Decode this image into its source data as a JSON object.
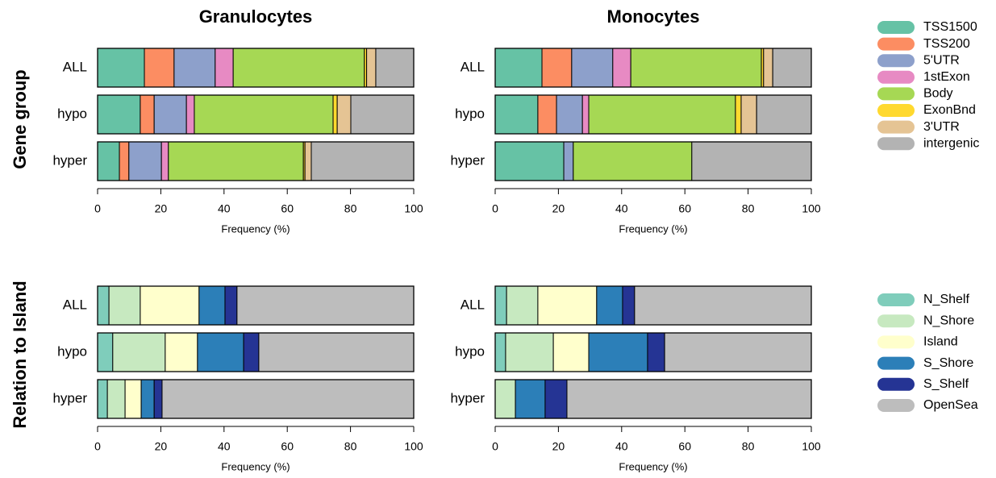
{
  "column_titles": [
    "Granulocytes",
    "Monocytes"
  ],
  "row_titles": [
    "Gene group",
    "Relation to Island"
  ],
  "chart_data": [
    {
      "type": "bar",
      "orientation": "horizontal",
      "stacked": true,
      "legend": "right",
      "categories": [
        "ALL",
        "hypo",
        "hyper"
      ],
      "xlabel": "Frequency (%)",
      "xlim": [
        0,
        100
      ],
      "xticks": [
        0,
        20,
        40,
        60,
        80,
        100
      ],
      "series": [
        {
          "name": "TSS1500",
          "color": "#66c2a5",
          "values": [
            14.8,
            13.5,
            6.9
          ]
        },
        {
          "name": "TSS200",
          "color": "#fc8d62",
          "values": [
            9.4,
            4.4,
            3.0
          ]
        },
        {
          "name": "5'UTR",
          "color": "#8da0cb",
          "values": [
            13.0,
            10.2,
            10.3
          ]
        },
        {
          "name": "1stExon",
          "color": "#e78ac3",
          "values": [
            5.7,
            2.5,
            2.2
          ]
        },
        {
          "name": "Body",
          "color": "#a6d854",
          "values": [
            41.5,
            43.9,
            42.7
          ]
        },
        {
          "name": "ExonBnd",
          "color": "#ffd92f",
          "values": [
            0.7,
            1.3,
            0.5
          ]
        },
        {
          "name": "3'UTR",
          "color": "#e5c494",
          "values": [
            2.9,
            4.3,
            2.0
          ]
        },
        {
          "name": "intergenic",
          "color": "#b3b3b3",
          "values": [
            12.0,
            19.9,
            32.4
          ]
        }
      ]
    },
    {
      "type": "bar",
      "orientation": "horizontal",
      "stacked": true,
      "categories": [
        "ALL",
        "hypo",
        "hyper"
      ],
      "xlabel": "Frequency (%)",
      "xlim": [
        0,
        100
      ],
      "xticks": [
        0,
        20,
        40,
        60,
        80,
        100
      ],
      "series": [
        {
          "name": "TSS1500",
          "color": "#66c2a5",
          "values": [
            14.8,
            13.5,
            21.7
          ]
        },
        {
          "name": "TSS200",
          "color": "#fc8d62",
          "values": [
            9.4,
            5.9,
            0
          ]
        },
        {
          "name": "5'UTR",
          "color": "#8da0cb",
          "values": [
            13.0,
            8.2,
            3.0
          ]
        },
        {
          "name": "1stExon",
          "color": "#e78ac3",
          "values": [
            5.7,
            2.0,
            0
          ]
        },
        {
          "name": "Body",
          "color": "#a6d854",
          "values": [
            41.3,
            46.4,
            37.5
          ]
        },
        {
          "name": "ExonBnd",
          "color": "#ffd92f",
          "values": [
            0.7,
            1.8,
            0
          ]
        },
        {
          "name": "3'UTR",
          "color": "#e5c494",
          "values": [
            2.9,
            4.9,
            0
          ]
        },
        {
          "name": "intergenic",
          "color": "#b3b3b3",
          "values": [
            12.2,
            17.3,
            37.8
          ]
        }
      ]
    },
    {
      "type": "bar",
      "orientation": "horizontal",
      "stacked": true,
      "legend": "right",
      "categories": [
        "ALL",
        "hypo",
        "hyper"
      ],
      "xlabel": "Frequency (%)",
      "xlim": [
        0,
        100
      ],
      "xticks": [
        0,
        20,
        40,
        60,
        80,
        100
      ],
      "series": [
        {
          "name": "N_Shelf",
          "color": "#7fcdbb",
          "values": [
            3.6,
            4.8,
            3.1
          ]
        },
        {
          "name": "N_Shore",
          "color": "#c7e9c0",
          "values": [
            9.9,
            16.6,
            5.6
          ]
        },
        {
          "name": "Island",
          "color": "#ffffcc",
          "values": [
            18.6,
            10.2,
            5.1
          ]
        },
        {
          "name": "S_Shore",
          "color": "#2c7fb8",
          "values": [
            8.2,
            14.6,
            4.1
          ]
        },
        {
          "name": "S_Shelf",
          "color": "#253494",
          "values": [
            3.8,
            4.8,
            2.5
          ]
        },
        {
          "name": "OpenSea",
          "color": "#bdbdbd",
          "values": [
            55.9,
            49.0,
            79.6
          ]
        }
      ]
    },
    {
      "type": "bar",
      "orientation": "horizontal",
      "stacked": true,
      "categories": [
        "ALL",
        "hypo",
        "hyper"
      ],
      "xlabel": "Frequency (%)",
      "xlim": [
        0,
        100
      ],
      "xticks": [
        0,
        20,
        40,
        60,
        80,
        100
      ],
      "series": [
        {
          "name": "N_Shelf",
          "color": "#7fcdbb",
          "values": [
            3.6,
            3.3,
            0
          ]
        },
        {
          "name": "N_Shore",
          "color": "#c7e9c0",
          "values": [
            9.9,
            15.1,
            6.4
          ]
        },
        {
          "name": "Island",
          "color": "#ffffcc",
          "values": [
            18.6,
            11.2,
            0
          ]
        },
        {
          "name": "S_Shore",
          "color": "#2c7fb8",
          "values": [
            8.2,
            18.6,
            9.4
          ]
        },
        {
          "name": "S_Shelf",
          "color": "#253494",
          "values": [
            3.8,
            5.4,
            6.9
          ]
        },
        {
          "name": "OpenSea",
          "color": "#bdbdbd",
          "values": [
            55.9,
            46.4,
            77.3
          ]
        }
      ]
    }
  ]
}
